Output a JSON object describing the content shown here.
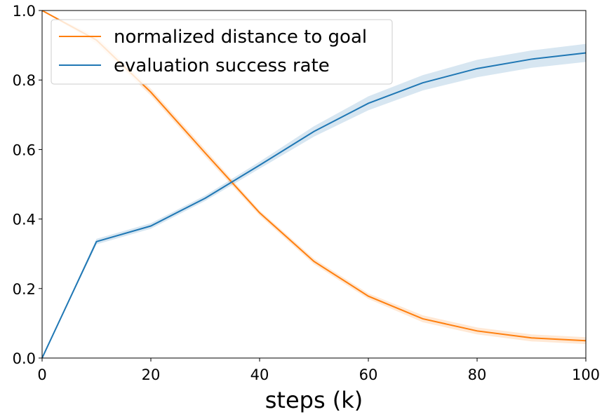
{
  "chart_data": {
    "type": "line",
    "title": "",
    "xlabel": "steps (k)",
    "ylabel": "",
    "xlim": [
      0,
      100
    ],
    "ylim": [
      0,
      1.0
    ],
    "x_ticks": [
      "0",
      "20",
      "40",
      "60",
      "80",
      "100"
    ],
    "y_ticks": [
      "0.0",
      "0.2",
      "0.4",
      "0.6",
      "0.8",
      "1.0"
    ],
    "grid": false,
    "legend_position": "top-left",
    "x": [
      0,
      10,
      20,
      30,
      40,
      50,
      60,
      70,
      80,
      90,
      100
    ],
    "series": [
      {
        "name": "normalized distance to goal",
        "color": "#ff7f0e",
        "values": [
          1.0,
          0.915,
          0.765,
          0.59,
          0.418,
          0.278,
          0.178,
          0.113,
          0.078,
          0.058,
          0.05
        ],
        "lower": [
          1.0,
          0.905,
          0.755,
          0.58,
          0.41,
          0.27,
          0.17,
          0.103,
          0.068,
          0.048,
          0.04
        ],
        "upper": [
          1.0,
          0.925,
          0.775,
          0.6,
          0.425,
          0.286,
          0.186,
          0.123,
          0.088,
          0.068,
          0.06
        ]
      },
      {
        "name": "evaluation success rate",
        "color": "#1f77b4",
        "values": [
          0.0,
          0.335,
          0.38,
          0.46,
          0.555,
          0.652,
          0.733,
          0.792,
          0.833,
          0.86,
          0.878
        ],
        "lower": [
          0.0,
          0.327,
          0.372,
          0.452,
          0.545,
          0.637,
          0.713,
          0.77,
          0.808,
          0.835,
          0.852
        ],
        "upper": [
          0.0,
          0.343,
          0.388,
          0.468,
          0.565,
          0.667,
          0.753,
          0.814,
          0.858,
          0.885,
          0.904
        ]
      }
    ]
  }
}
